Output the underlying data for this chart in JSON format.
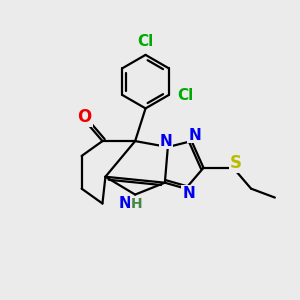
{
  "background_color": "#ebebeb",
  "bond_color": "#000000",
  "bond_width": 1.6,
  "atom_colors": {
    "N": "#0000ee",
    "O": "#ee0000",
    "S": "#bbbb00",
    "Cl": "#00aa00",
    "H": "#448844"
  },
  "font_size_atom": 11,
  "font_size_H": 10,
  "figsize": [
    3.0,
    3.0
  ],
  "dpi": 100
}
